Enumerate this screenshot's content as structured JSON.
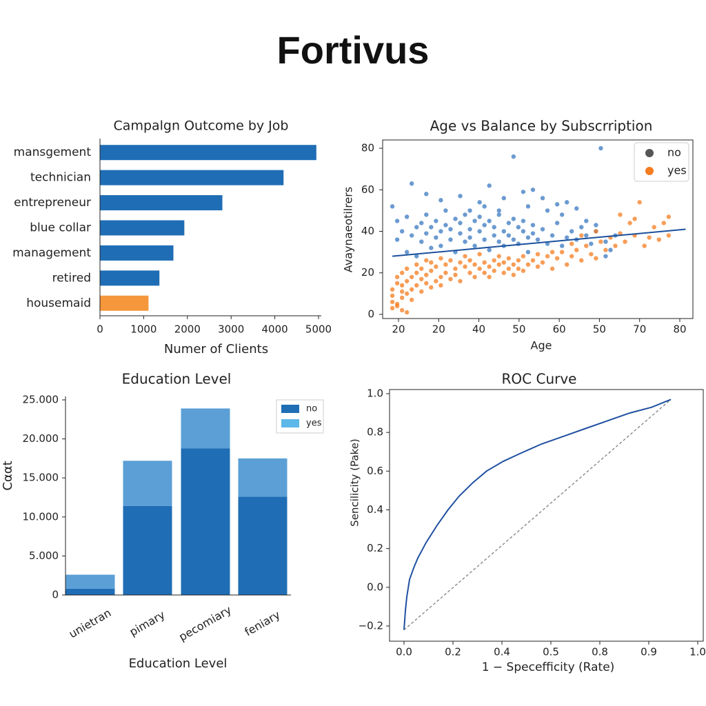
{
  "page": {
    "title": "Fortivus"
  },
  "chart_data": [
    {
      "type": "bar",
      "orientation": "horizontal",
      "title": "Campalgn Outcome by Job",
      "xlabel": "Numer of Clients",
      "ylabel": "",
      "categories": [
        "mansgement",
        "technician",
        "entrepreneur",
        "blue collar",
        "management",
        "retired",
        "housemaid"
      ],
      "values": [
        4950,
        4200,
        2800,
        1930,
        1680,
        1360,
        1110
      ],
      "highlight": {
        "category": "housemaid",
        "color": "#f5973a"
      },
      "xlim": [
        0,
        5000
      ],
      "xticks": [
        "0",
        "1000",
        "2000",
        "3000",
        "4000",
        "5000"
      ],
      "grid": false,
      "colors": {
        "bar": "#1f6db5"
      }
    },
    {
      "type": "scatter",
      "title": "Age vs Balance by Subscrription",
      "xlabel": "Age",
      "ylabel": "Avaynaeotilrers",
      "xlim": [
        18,
        82
      ],
      "ylim": [
        -2,
        84
      ],
      "xticks": [
        "20",
        "20",
        "40",
        "50",
        "60",
        "50",
        "70",
        "80"
      ],
      "yticks": [
        "0",
        "20",
        "40",
        "60",
        "80"
      ],
      "legend": {
        "placement": "top-right",
        "entries": [
          "no",
          "yes"
        ]
      },
      "series": [
        {
          "name": "no",
          "color": "#3a78c0",
          "points": [
            [
              20,
              52
            ],
            [
              21,
              45
            ],
            [
              21,
              36
            ],
            [
              22,
              40
            ],
            [
              23,
              30
            ],
            [
              23,
              47
            ],
            [
              24,
              38
            ],
            [
              25,
              42
            ],
            [
              25,
              28
            ],
            [
              26,
              44
            ],
            [
              26,
              35
            ],
            [
              27,
              39
            ],
            [
              27,
              48
            ],
            [
              28,
              32
            ],
            [
              28,
              42
            ],
            [
              29,
              37
            ],
            [
              29,
              45
            ],
            [
              30,
              40
            ],
            [
              30,
              33
            ],
            [
              31,
              43
            ],
            [
              31,
              50
            ],
            [
              32,
              36
            ],
            [
              32,
              41
            ],
            [
              33,
              46
            ],
            [
              33,
              30
            ],
            [
              34,
              39
            ],
            [
              34,
              44
            ],
            [
              35,
              35
            ],
            [
              35,
              48
            ],
            [
              36,
              41
            ],
            [
              36,
              37
            ],
            [
              37,
              45
            ],
            [
              37,
              33
            ],
            [
              38,
              40
            ],
            [
              38,
              47
            ],
            [
              39,
              36
            ],
            [
              39,
              43
            ],
            [
              40,
              31
            ],
            [
              40,
              45
            ],
            [
              41,
              38
            ],
            [
              41,
              42
            ],
            [
              42,
              35
            ],
            [
              42,
              48
            ],
            [
              43,
              40
            ],
            [
              43,
              33
            ],
            [
              44,
              44
            ],
            [
              44,
              38
            ],
            [
              45,
              46
            ],
            [
              45,
              36
            ],
            [
              46,
              42
            ],
            [
              46,
              34
            ],
            [
              47,
              40
            ],
            [
              47,
              45
            ],
            [
              48,
              37
            ],
            [
              48,
              30
            ],
            [
              49,
              43
            ],
            [
              49,
              39
            ],
            [
              50,
              36
            ],
            [
              51,
              41
            ],
            [
              52,
              34
            ],
            [
              53,
              38
            ],
            [
              54,
              44
            ],
            [
              55,
              33
            ],
            [
              56,
              37
            ],
            [
              57,
              40
            ],
            [
              58,
              36
            ],
            [
              59,
              42
            ],
            [
              60,
              38
            ],
            [
              61,
              34
            ],
            [
              62,
              40
            ],
            [
              64,
              35
            ],
            [
              65,
              31
            ],
            [
              66,
              38
            ],
            [
              24,
              63
            ],
            [
              27,
              58
            ],
            [
              30,
              55
            ],
            [
              34,
              57
            ],
            [
              38,
              54
            ],
            [
              40,
              62
            ],
            [
              43,
              56
            ],
            [
              45,
              76
            ],
            [
              47,
              59
            ],
            [
              49,
              60
            ],
            [
              51,
              56
            ],
            [
              54,
              53
            ],
            [
              56,
              54
            ],
            [
              58,
              51
            ],
            [
              63,
              80
            ],
            [
              36,
              50
            ],
            [
              39,
              52
            ],
            [
              42,
              50
            ],
            [
              48,
              52
            ],
            [
              52,
              50
            ],
            [
              55,
              48
            ],
            [
              60,
              45
            ],
            [
              62,
              43
            ],
            [
              64,
              28
            ]
          ]
        },
        {
          "name": "yes",
          "color": "#f57c1f",
          "points": [
            [
              20,
              3
            ],
            [
              20,
              6
            ],
            [
              20,
              9
            ],
            [
              20,
              12
            ],
            [
              21,
              5
            ],
            [
              21,
              15
            ],
            [
              21,
              18
            ],
            [
              22,
              8
            ],
            [
              22,
              11
            ],
            [
              22,
              20
            ],
            [
              22,
              14
            ],
            [
              23,
              10
            ],
            [
              23,
              16
            ],
            [
              23,
              22
            ],
            [
              24,
              12
            ],
            [
              24,
              7
            ],
            [
              24,
              18
            ],
            [
              25,
              14
            ],
            [
              25,
              20
            ],
            [
              25,
              24
            ],
            [
              26,
              11
            ],
            [
              26,
              17
            ],
            [
              26,
              22
            ],
            [
              27,
              15
            ],
            [
              27,
              19
            ],
            [
              27,
              26
            ],
            [
              28,
              13
            ],
            [
              28,
              21
            ],
            [
              28,
              25
            ],
            [
              29,
              16
            ],
            [
              29,
              23
            ],
            [
              30,
              18
            ],
            [
              30,
              14
            ],
            [
              30,
              27
            ],
            [
              31,
              20
            ],
            [
              31,
              24
            ],
            [
              32,
              17
            ],
            [
              32,
              26
            ],
            [
              33,
              22
            ],
            [
              33,
              19
            ],
            [
              34,
              25
            ],
            [
              34,
              16
            ],
            [
              35,
              23
            ],
            [
              35,
              28
            ],
            [
              36,
              20
            ],
            [
              36,
              26
            ],
            [
              37,
              18
            ],
            [
              37,
              24
            ],
            [
              38,
              22
            ],
            [
              38,
              29
            ],
            [
              39,
              20
            ],
            [
              39,
              25
            ],
            [
              40,
              23
            ],
            [
              40,
              18
            ],
            [
              41,
              26
            ],
            [
              41,
              21
            ],
            [
              42,
              24
            ],
            [
              42,
              28
            ],
            [
              43,
              20
            ],
            [
              43,
              25
            ],
            [
              44,
              27
            ],
            [
              44,
              22
            ],
            [
              45,
              24
            ],
            [
              45,
              19
            ],
            [
              46,
              26
            ],
            [
              46,
              22
            ],
            [
              47,
              28
            ],
            [
              47,
              21
            ],
            [
              48,
              24
            ],
            [
              49,
              26
            ],
            [
              50,
              23
            ],
            [
              50,
              29
            ],
            [
              51,
              25
            ],
            [
              52,
              28
            ],
            [
              53,
              22
            ],
            [
              54,
              27
            ],
            [
              55,
              30
            ],
            [
              56,
              24
            ],
            [
              57,
              28
            ],
            [
              58,
              31
            ],
            [
              59,
              26
            ],
            [
              60,
              33
            ],
            [
              61,
              29
            ],
            [
              62,
              27
            ],
            [
              63,
              35
            ],
            [
              64,
              31
            ],
            [
              65,
              37
            ],
            [
              66,
              33
            ],
            [
              67,
              39
            ],
            [
              68,
              35
            ],
            [
              69,
              44
            ],
            [
              70,
              38
            ],
            [
              71,
              54
            ],
            [
              72,
              33
            ],
            [
              73,
              37
            ],
            [
              74,
              42
            ],
            [
              75,
              36
            ],
            [
              76,
              44
            ],
            [
              77,
              47
            ],
            [
              77,
              38
            ],
            [
              70,
              46
            ],
            [
              67,
              48
            ],
            [
              62,
              40
            ],
            [
              59,
              38
            ],
            [
              57,
              34
            ],
            [
              53,
              30
            ],
            [
              22,
              2
            ],
            [
              21,
              4
            ],
            [
              23,
              1
            ]
          ]
        }
      ],
      "trendline": {
        "color": "#1a4f9c",
        "from": [
          20,
          28
        ],
        "to": [
          80.5,
          41
        ]
      }
    },
    {
      "type": "bar",
      "stacked": true,
      "title": "Education Level",
      "xlabel": "Education Level",
      "ylabel": "Cααt",
      "categories": [
        "unietran",
        "pimary",
        "pecomiary",
        "feniary"
      ],
      "series": [
        {
          "name": "no",
          "values": [
            800,
            11400,
            18800,
            12600
          ],
          "color": "#1f6db5"
        },
        {
          "name": "yes",
          "values": [
            1800,
            5800,
            5100,
            4900
          ],
          "color": "#5b9fd6"
        }
      ],
      "ylim": [
        0,
        25000
      ],
      "yticks": [
        "0",
        "5.000",
        "10.000",
        "15.000",
        "20.000",
        "25.000"
      ],
      "legend": {
        "placement": "top-right",
        "entries": [
          "no",
          "yes"
        ],
        "colors": [
          "#1f6db5",
          "#5bb8e8"
        ]
      }
    },
    {
      "type": "line",
      "title": "ROC Curve",
      "xlabel": "1 − Specefficity (Rate)",
      "ylabel": "Sencilicity  (Pake)",
      "xticks": [
        "0.0",
        "0.2",
        "0.4",
        "0.5",
        "0.8",
        "0.9",
        "1.0"
      ],
      "yticks": [
        "−0.2",
        "0.0",
        "0.2",
        "0.4",
        "0.6",
        "0.8",
        "1.0"
      ],
      "xlim": [
        -0.05,
        1.05
      ],
      "ylim": [
        -0.25,
        1.02
      ],
      "series": [
        {
          "name": "",
          "color": "#1f4fa0",
          "x": [
            0.0,
            0.005,
            0.01,
            0.02,
            0.035,
            0.05,
            0.08,
            0.12,
            0.16,
            0.2,
            0.25,
            0.3,
            0.36,
            0.42,
            0.5,
            0.58,
            0.66,
            0.74,
            0.82,
            0.9,
            0.97
          ],
          "y": [
            -0.22,
            -0.12,
            -0.05,
            0.04,
            0.1,
            0.15,
            0.23,
            0.32,
            0.4,
            0.47,
            0.54,
            0.6,
            0.65,
            0.69,
            0.74,
            0.78,
            0.82,
            0.86,
            0.9,
            0.93,
            0.97
          ]
        }
      ],
      "reference_line": {
        "style": "dashed",
        "color": "#888888",
        "from": [
          0.0,
          -0.22
        ],
        "to": [
          0.97,
          0.97
        ]
      }
    }
  ]
}
